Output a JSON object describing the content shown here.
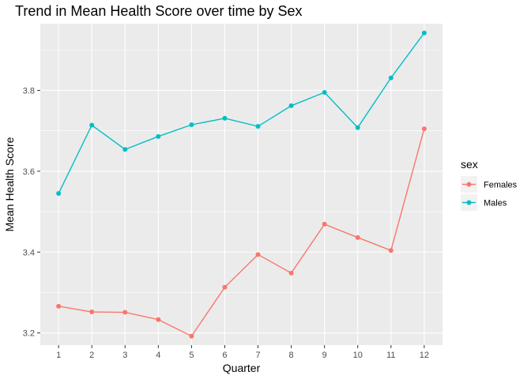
{
  "chart_data": {
    "type": "line",
    "title": "Trend in Mean Health Score over time by Sex",
    "xlabel": "Quarter",
    "ylabel": "Mean Health Score",
    "x": [
      1,
      2,
      3,
      4,
      5,
      6,
      7,
      8,
      9,
      10,
      11,
      12
    ],
    "x_ticks": [
      "1",
      "2",
      "3",
      "4",
      "5",
      "6",
      "7",
      "8",
      "9",
      "10",
      "11",
      "12"
    ],
    "y_ticks": [
      3.2,
      3.4,
      3.6,
      3.8
    ],
    "y_tick_labels": [
      "3.2",
      "3.4",
      "3.6",
      "3.8"
    ],
    "xlim": [
      0.45,
      12.55
    ],
    "ylim": [
      3.17,
      3.965
    ],
    "grid": true,
    "legend": {
      "title": "sex",
      "placement": "right"
    },
    "series": [
      {
        "name": "Females",
        "color": "#F8766D",
        "values": [
          3.266,
          3.252,
          3.251,
          3.233,
          3.192,
          3.313,
          3.394,
          3.348,
          3.469,
          3.436,
          3.404,
          3.705
        ]
      },
      {
        "name": "Males",
        "color": "#00BFC4",
        "values": [
          3.545,
          3.714,
          3.654,
          3.686,
          3.715,
          3.731,
          3.711,
          3.762,
          3.795,
          3.708,
          3.831,
          3.942
        ]
      }
    ],
    "panel_background": "#EBEBEB",
    "grid_color": "#FFFFFF"
  }
}
